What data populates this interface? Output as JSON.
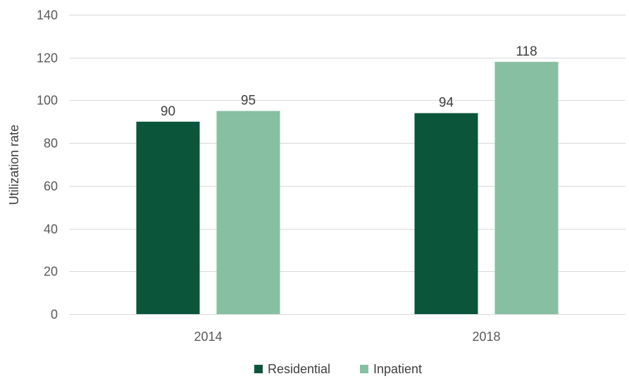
{
  "chart_data": {
    "type": "bar",
    "title": "",
    "xlabel": "",
    "ylabel": "Utilization rate",
    "categories": [
      "2014",
      "2018"
    ],
    "series": [
      {
        "name": "Residential",
        "values": [
          90,
          94
        ],
        "color": "#0b553a"
      },
      {
        "name": "Inpatient",
        "values": [
          95,
          118
        ],
        "color": "#86bfa2"
      }
    ],
    "ylim": [
      0,
      140
    ],
    "yticks": [
      0,
      20,
      40,
      60,
      80,
      100,
      120,
      140
    ],
    "grid": true,
    "legend_position": "bottom",
    "data_labels": true
  }
}
